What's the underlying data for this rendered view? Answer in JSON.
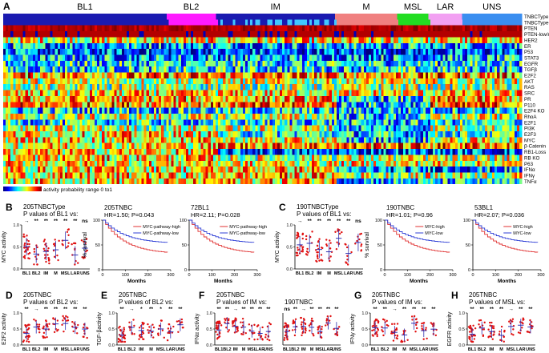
{
  "figure": {
    "panel_letters": [
      "A",
      "B",
      "C",
      "D",
      "E",
      "F",
      "G",
      "H"
    ],
    "heatmap": {
      "subtypes": [
        {
          "label": "BL1",
          "color": "#1a1ab0",
          "start": 0.0,
          "end": 0.315
        },
        {
          "label": "BL2",
          "color": "#ff1aff",
          "start": 0.315,
          "end": 0.41
        },
        {
          "label": "IM",
          "color": "#1a1ab0",
          "start": 0.41,
          "end": 0.64
        },
        {
          "label": "M",
          "color": "#f08080",
          "start": 0.64,
          "end": 0.76
        },
        {
          "label": "MSL",
          "color": "#22dd22",
          "start": 0.76,
          "end": 0.82
        },
        {
          "label": "LAR",
          "color": "#f2a0f2",
          "start": 0.82,
          "end": 0.885
        },
        {
          "label": "UNS",
          "color": "#3a8ef0",
          "start": 0.885,
          "end": 1.0
        }
      ],
      "row_labels": [
        "TNBCType",
        "TNBCType-4",
        "PTEN",
        "PTEN-low/miRs-low",
        "HER2",
        "ER",
        "P53",
        "STAT3",
        "EGFR",
        "TGFβ",
        "E2F2",
        "AKT",
        "RAS",
        "SRC",
        "PR",
        "P110",
        "E2F4 KO",
        "RhoA",
        "E2F1",
        "PI3K",
        "E2F3",
        "MYC",
        "β-Catenin",
        "RB1-Loss",
        "RB KO",
        "P63",
        "IFNα",
        "IFNγ",
        "TNFα"
      ],
      "scale_label": "activity probability range 0 to1"
    },
    "panels": {
      "B": {
        "header": [
          "205TNBCType",
          "P values of BL1 vs:"
        ],
        "ylabel": "MYC activity",
        "categories": [
          "BL1",
          "BL2",
          "IM",
          "M",
          "MSL",
          "LAR",
          "UNS"
        ],
        "sig": [
          "→",
          "**",
          "**",
          "**",
          "**",
          "**",
          "ns"
        ]
      },
      "B_km1": {
        "title": "205TNBC",
        "stat": "HR=1.50; P=0.043",
        "legend": [
          "MYC-pathway-high",
          "MYC-pathway-low"
        ],
        "xlabel": "Months",
        "ylabel": "% survival"
      },
      "B_km2": {
        "title": "72BL1",
        "stat": "HR=2.11; P=0.028",
        "legend": [
          "MYC-pathway-high",
          "MYC-pathway-low"
        ],
        "xlabel": "Months"
      },
      "C": {
        "header": [
          "190TNBCType",
          "P values of BL1 vs:"
        ],
        "ylabel": "MYC activity",
        "categories": [
          "BL1",
          "BL2",
          "IM",
          "M",
          "MSL",
          "LAR",
          "UNS"
        ],
        "sig": [
          "→",
          "**",
          "**",
          "**",
          "**",
          "**",
          "ns"
        ]
      },
      "C_km1": {
        "title": "190TNBC",
        "stat": "HR=1.01; P=0.96",
        "legend": [
          "MYC-high",
          "MYC-low"
        ],
        "xlabel": "Months",
        "ylabel": "% survival"
      },
      "C_km2": {
        "title": "53BL1",
        "stat": "HR=2.07; P=0.036",
        "legend": [
          "MYC-high",
          "MYC-low"
        ],
        "xlabel": "Months"
      },
      "D": {
        "header": [
          "205TNBC",
          "P values of BL2 vs:"
        ],
        "ylabel": "E2F2 activity",
        "categories": [
          "BL1",
          "BL2",
          "IM",
          "M",
          "MSL",
          "LAR",
          "UNS"
        ],
        "sig": [
          "**",
          "→",
          "**",
          "**",
          "**",
          "**",
          "**"
        ]
      },
      "E": {
        "header": [
          "205TNBC",
          "P values of BL2 vs:"
        ],
        "ylabel": "TGF-βactivity",
        "categories": [
          "BL1",
          "BL2",
          "IM",
          "M",
          "MSL",
          "LAR",
          "UNS"
        ],
        "sig": [
          "**",
          "→",
          "*",
          "**",
          "*",
          "**",
          "**"
        ]
      },
      "F1": {
        "header": [
          "205TNBC",
          "P values of IM vs:"
        ],
        "ylabel": "IFNα activity",
        "categories": [
          "BL1",
          "BL2",
          "IM",
          "M",
          "MSL",
          "LAR",
          "UNS"
        ],
        "sig": [
          "**",
          "**",
          "→",
          "**",
          "**",
          "**",
          "**"
        ]
      },
      "F2": {
        "header": [
          "190TNBC"
        ],
        "categories": [
          "BL1",
          "BL2",
          "IM",
          "M",
          "MSL",
          "LAR",
          "UNS"
        ],
        "sig": [
          "ns",
          "**",
          "→",
          "**",
          "**",
          "**",
          "**"
        ]
      },
      "G": {
        "header": [
          "205TNBC",
          "P values of IM vs:"
        ],
        "ylabel": "IFNγ activity",
        "categories": [
          "BL1",
          "BL2",
          "IM",
          "M",
          "MSL",
          "LAR",
          "UNS"
        ],
        "sig": [
          "**",
          "**",
          "→",
          "**",
          "**",
          "**",
          "**"
        ]
      },
      "H": {
        "header": [
          "205TNBC",
          "P values of MSL vs:"
        ],
        "ylabel": "EGFR activity",
        "categories": [
          "BL1",
          "BL2",
          "IM",
          "M",
          "MSL",
          "LAR",
          "UNS"
        ],
        "sig": [
          "**",
          "**",
          "**",
          "**",
          "→",
          "**",
          "**"
        ]
      }
    },
    "km_axis": {
      "y_ticks": [
        "0",
        "50",
        "100"
      ],
      "x_ticks": [
        "0",
        "100",
        "200",
        "300"
      ]
    },
    "dot_axis": {
      "y_ticks": [
        "0.0",
        "0.5",
        "1.0"
      ]
    },
    "colors": {
      "high": "#e03030",
      "low": "#2f3fd6",
      "point": "#e01010",
      "mean": "#3030b0"
    }
  }
}
